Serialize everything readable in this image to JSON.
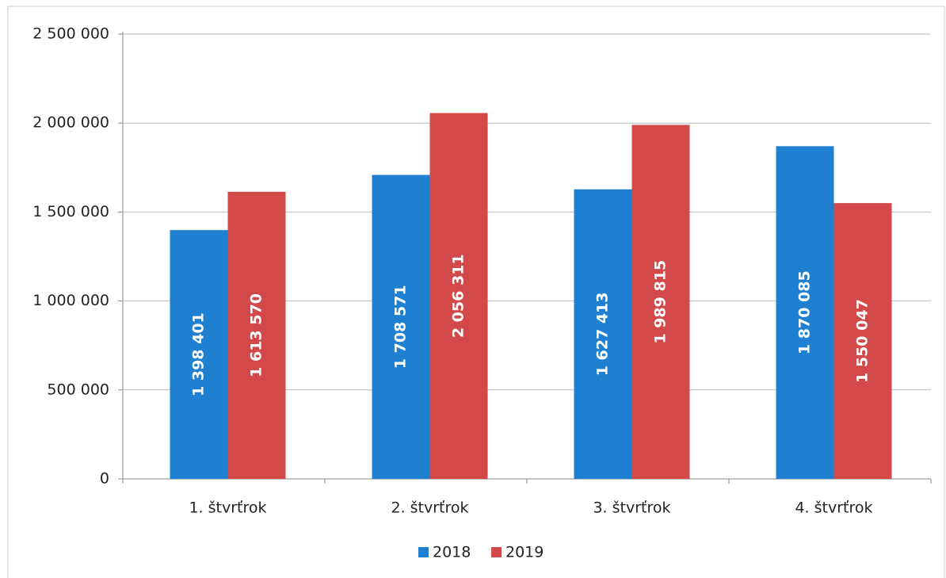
{
  "chart_data": {
    "type": "bar",
    "categories": [
      "1. štvrťrok",
      "2. štvrťrok",
      "3. štvrťrok",
      "4. štvrťrok"
    ],
    "series": [
      {
        "name": "2018",
        "color": "#1f80d2",
        "values": [
          1398401,
          1708571,
          1627413,
          1870085
        ],
        "value_labels": [
          "1 398 401",
          "1 708 571",
          "1 627 413",
          "1 870 085"
        ]
      },
      {
        "name": "2019",
        "color": "#d34848",
        "values": [
          1613570,
          2056311,
          1989815,
          1550047
        ],
        "value_labels": [
          "1 613 570",
          "2 056 311",
          "1 989 815",
          "1 550 047"
        ]
      }
    ],
    "ylim": [
      0,
      2500000
    ],
    "yticks": [
      0,
      {
        "value": 500000,
        "label": "500 000"
      },
      {
        "value": 1000000,
        "label": "1 000 000"
      },
      {
        "value": 1500000,
        "label": "1 500 000"
      },
      {
        "value": 2000000,
        "label": "2 000 000"
      },
      {
        "value": 2500000,
        "label": "2 500 000"
      }
    ],
    "grid": true,
    "legend": "bottom"
  }
}
